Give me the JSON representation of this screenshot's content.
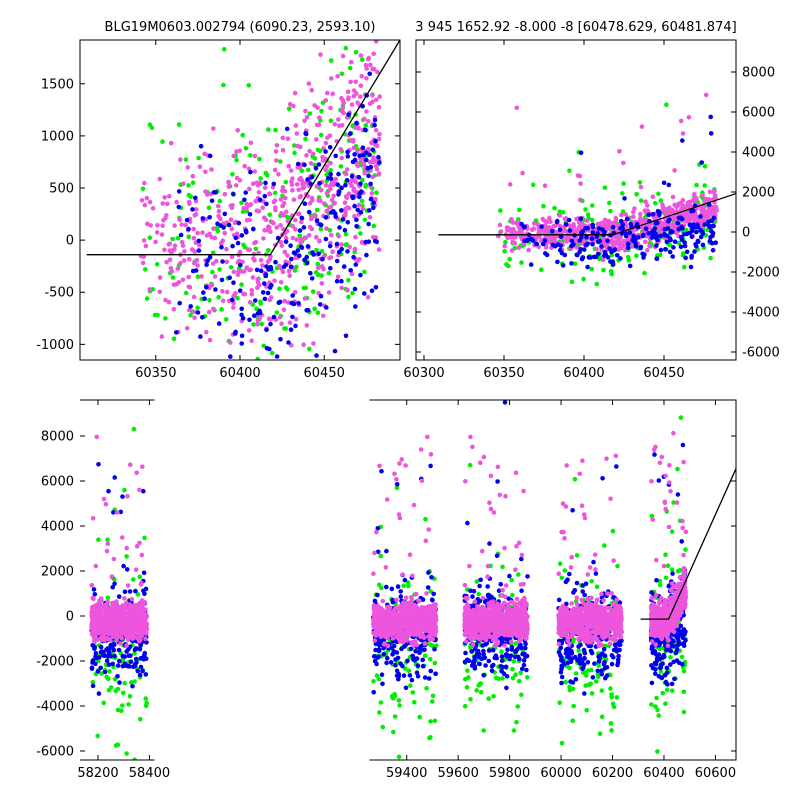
{
  "figure": {
    "title_left": "BLG19M0603.002794 (6090.23, 2593.10)",
    "title_right": "3 945 1652.92 -8.000 -8 [60478.629, 60481.874]"
  },
  "colors": {
    "magenta": "#ee55dd",
    "green": "#00ee00",
    "blue": "#0000ee",
    "model": "#000000"
  },
  "chart_data": [
    {
      "type": "scatter",
      "panel": "top-left",
      "title": "BLG19M0603.002794 (6090.23, 2593.10)",
      "xlim": [
        60305,
        60495
      ],
      "ylim": [
        -1150,
        1920
      ],
      "xticks": [
        60350,
        60400,
        60450
      ],
      "yticks": [
        -1000,
        -500,
        0,
        500,
        1000,
        1500
      ],
      "ytick_side": "left",
      "series": [
        {
          "color": "green",
          "x_range": [
            60340,
            60483
          ],
          "y_center": -100,
          "y_spread": 600,
          "rise_start": 60418,
          "slope": 14
        },
        {
          "color": "magenta",
          "x_range": [
            60340,
            60483
          ],
          "y_center": -50,
          "y_spread": 480,
          "rise_start": 60418,
          "slope": 16
        },
        {
          "color": "blue",
          "x_range": [
            60360,
            60483
          ],
          "y_center": -350,
          "y_spread": 500,
          "rise_start": 60418,
          "slope": 13
        }
      ],
      "model_line": {
        "x": [
          60309,
          60418,
          60495
        ],
        "y": [
          -140,
          -140,
          1920
        ]
      }
    },
    {
      "type": "scatter",
      "panel": "top-right",
      "title": "3 945 1652.92 -8.000 -8 [60478.629, 60481.874]",
      "xlim": [
        60295,
        60495
      ],
      "ylim": [
        -6400,
        9600
      ],
      "xticks": [
        60300,
        60350,
        60400,
        60450
      ],
      "yticks": [
        -6000,
        -4000,
        -2000,
        0,
        2000,
        4000,
        6000,
        8000
      ],
      "ytick_side": "right",
      "series": [
        {
          "color": "green",
          "x_range": [
            60345,
            60483
          ],
          "y_center": -300,
          "y_spread": 900,
          "rise_start": 60418,
          "slope": 16
        },
        {
          "color": "magenta",
          "x_range": [
            60345,
            60483
          ],
          "y_center": -100,
          "y_spread": 380,
          "rise_start": 60418,
          "slope": 20
        },
        {
          "color": "blue",
          "x_range": [
            60360,
            60483
          ],
          "y_center": -700,
          "y_spread": 650,
          "rise_start": 60418,
          "slope": 14
        }
      ],
      "model_line": {
        "x": [
          60309,
          60418,
          60495
        ],
        "y": [
          -140,
          -140,
          1920
        ]
      }
    },
    {
      "type": "scatter",
      "panel": "bottom",
      "xlim": [
        58130,
        60680
      ],
      "ylim": [
        -6400,
        9600
      ],
      "xticks": [
        58200,
        58400,
        59400,
        59600,
        59800,
        60000,
        60200,
        60400,
        60600
      ],
      "yticks": [
        -6000,
        -4000,
        -2000,
        0,
        2000,
        4000,
        6000,
        8000
      ],
      "ytick_side": "left",
      "axis_break_between": [
        58420,
        59255
      ],
      "seasons": [
        {
          "x_range": [
            58175,
            58390
          ]
        },
        {
          "x_range": [
            59270,
            59515
          ]
        },
        {
          "x_range": [
            59625,
            59870
          ]
        },
        {
          "x_range": [
            59990,
            60235
          ]
        },
        {
          "x_range": [
            60350,
            60485
          ]
        }
      ],
      "series": [
        {
          "color": "green",
          "y_center": -1500,
          "y_spread": 1800
        },
        {
          "color": "blue",
          "y_center": -800,
          "y_spread": 1000
        },
        {
          "color": "magenta",
          "y_center": -250,
          "y_spread": 700
        }
      ],
      "model_line": {
        "x": [
          60309,
          60418,
          60680
        ],
        "y": [
          -140,
          -140,
          6550
        ]
      }
    }
  ]
}
